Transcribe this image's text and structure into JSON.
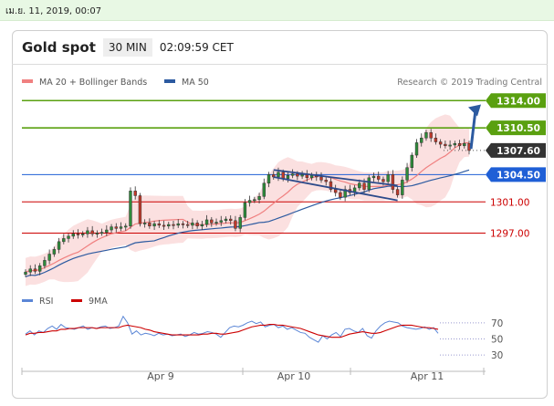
{
  "timestamp": "เม.ย. 11, 2019, 00:07",
  "header": {
    "title": "Gold spot",
    "timeframe": "30 MIN",
    "time": "02:09:59 CET"
  },
  "legend": [
    {
      "label": "MA 20 + Bollinger Bands",
      "color": "#f08080"
    },
    {
      "label": "MA 50",
      "color": "#2c5aa0"
    }
  ],
  "source": "Research © 2019 Trading Central",
  "colors": {
    "resistance": "#5aa010",
    "support_blue": "#1f5fd6",
    "support_red": "#cc0000",
    "price_box": "#333333",
    "candle": "#333333"
  },
  "chart_data": [
    {
      "type": "line",
      "title": "Gold spot",
      "x_tick_labels": [
        "Apr 9",
        "Apr 10",
        "Apr 11"
      ],
      "levels": [
        {
          "label": "1314.00",
          "value": 1314.0,
          "color": "#5aa010"
        },
        {
          "label": "1310.50",
          "value": 1310.5,
          "color": "#5aa010"
        },
        {
          "label": "1307.60",
          "value": 1307.6,
          "color": "#333333"
        },
        {
          "label": "1304.50",
          "value": 1304.5,
          "color": "#1f5fd6"
        },
        {
          "label": "1301.00",
          "value": 1301.0,
          "color": "#cc0000"
        },
        {
          "label": "1297.00",
          "value": 1297.0,
          "color": "#cc0000"
        }
      ],
      "ylim": [
        1291.2,
        1315.2
      ],
      "close_series": [
        1292.0,
        1292.4,
        1292.1,
        1292.8,
        1293.5,
        1294.3,
        1294.9,
        1295.9,
        1296.3,
        1296.6,
        1296.9,
        1296.8,
        1296.9,
        1297.3,
        1296.9,
        1297.0,
        1297.1,
        1297.4,
        1297.8,
        1297.6,
        1297.8,
        1297.9,
        1302.4,
        1301.8,
        1298.2,
        1298.3,
        1297.9,
        1298.2,
        1298.0,
        1297.9,
        1298.1,
        1298.0,
        1298.2,
        1298.1,
        1298.0,
        1298.3,
        1297.9,
        1298.1,
        1298.7,
        1298.3,
        1298.4,
        1298.6,
        1298.8,
        1298.6,
        1297.6,
        1299.0,
        1300.9,
        1301.2,
        1301.3,
        1301.7,
        1303.4,
        1304.5,
        1304.2,
        1304.8,
        1304.0,
        1304.4,
        1304.6,
        1304.3,
        1304.5,
        1304.1,
        1304.4,
        1304.2,
        1303.8,
        1303.6,
        1302.6,
        1302.2,
        1301.6,
        1302.6,
        1302.2,
        1302.8,
        1303.4,
        1302.6,
        1304.1,
        1304.3,
        1303.9,
        1303.6,
        1304.5,
        1302.6,
        1301.9,
        1303.8,
        1305.4,
        1307.0,
        1308.6,
        1309.2,
        1309.9,
        1309.2,
        1308.7,
        1308.4,
        1308.2,
        1308.3,
        1308.5,
        1308.2,
        1308.5,
        1307.6
      ],
      "annotations": [
        {
          "type": "channel",
          "label": "descending channel",
          "from_value": [
            1305.1,
            1303.1
          ],
          "to_value": [
            1304.2,
            1301.2
          ]
        },
        {
          "type": "arrow",
          "label": "target",
          "from_value": 1307.8,
          "to_value": 1313.5
        }
      ]
    },
    {
      "type": "line",
      "title": "",
      "series": [
        {
          "name": "RSI",
          "color": "#5b86d6"
        },
        {
          "name": "9MA",
          "color": "#cc0000"
        }
      ],
      "ylim": [
        20,
        80
      ],
      "y_tick_labels": [
        "70",
        "50",
        "30"
      ],
      "reference_lines": [
        70,
        50,
        30
      ],
      "rsi_values": [
        56,
        60,
        55,
        60,
        58,
        63,
        66,
        62,
        68,
        64,
        63,
        62,
        64,
        66,
        62,
        64,
        63,
        65,
        66,
        63,
        64,
        66,
        78,
        70,
        56,
        60,
        55,
        57,
        56,
        54,
        57,
        55,
        56,
        54,
        55,
        56,
        53,
        55,
        58,
        56,
        57,
        59,
        58,
        56,
        52,
        58,
        64,
        66,
        65,
        67,
        70,
        72,
        69,
        71,
        65,
        67,
        68,
        64,
        66,
        62,
        64,
        61,
        58,
        57,
        52,
        49,
        46,
        54,
        50,
        55,
        58,
        53,
        62,
        63,
        60,
        58,
        63,
        54,
        51,
        60,
        66,
        70,
        72,
        71,
        70,
        66,
        64,
        63,
        62,
        63,
        65,
        62,
        64,
        57
      ],
      "ma9_values": [
        55,
        57,
        57,
        58,
        58,
        59,
        60,
        60,
        62,
        62,
        63,
        63,
        64,
        64,
        64,
        64,
        63,
        64,
        64,
        64,
        64,
        64,
        66,
        67,
        66,
        65,
        64,
        62,
        61,
        59,
        58,
        57,
        56,
        55,
        55,
        55,
        55,
        55,
        55,
        55,
        56,
        56,
        57,
        57,
        56,
        56,
        57,
        58,
        59,
        61,
        63,
        65,
        66,
        67,
        67,
        68,
        68,
        67,
        67,
        66,
        65,
        64,
        63,
        61,
        59,
        57,
        55,
        54,
        53,
        52,
        52,
        52,
        54,
        56,
        57,
        58,
        59,
        58,
        57,
        57,
        58,
        60,
        62,
        64,
        66,
        67,
        67,
        67,
        66,
        65,
        64,
        64,
        63,
        62
      ]
    }
  ]
}
